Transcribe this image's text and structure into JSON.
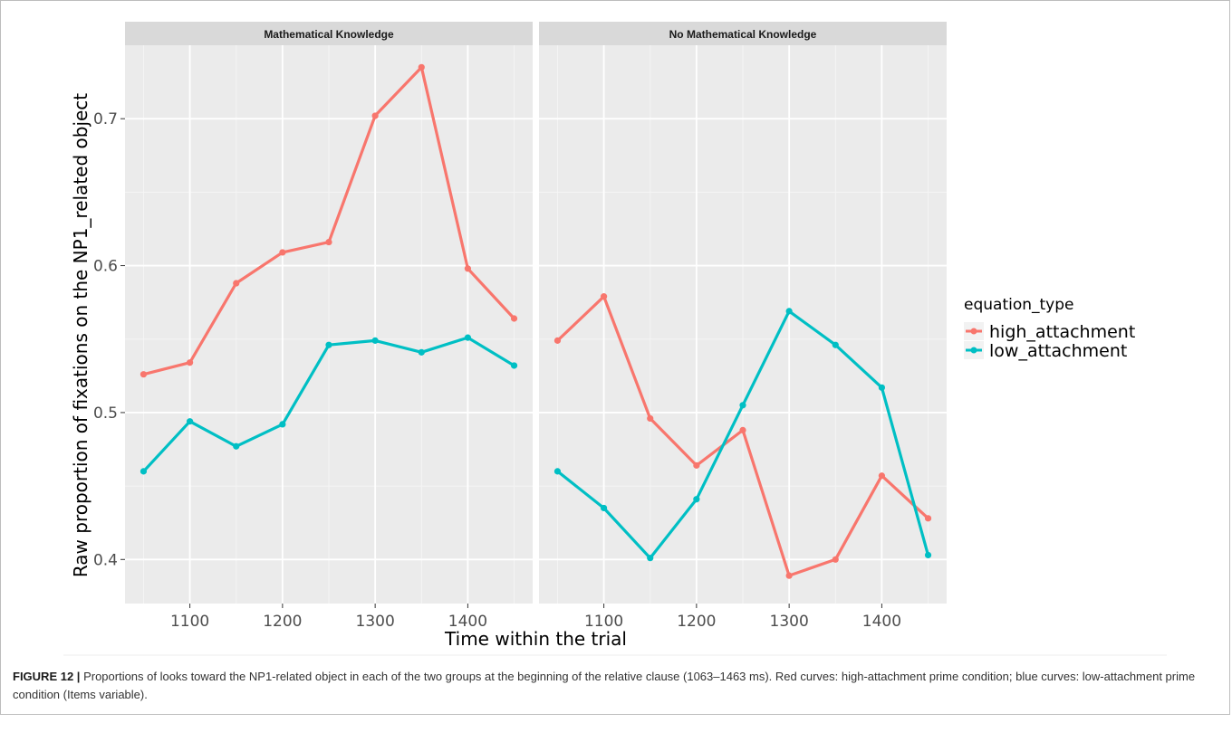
{
  "figure": {
    "label": "FIGURE 12 |",
    "caption": "Proportions of looks toward the NP1-related object in each of the two groups at the beginning of the relative clause (1063–1463 ms). Red curves: high-attachment prime condition; blue curves: low-attachment prime condition (Items variable)."
  },
  "chart_data": {
    "type": "line",
    "xlabel": "Time within the trial",
    "ylabel": "Raw proportion of fixations on the NP1_related object",
    "xlim": [
      1030,
      1470
    ],
    "ylim": [
      0.37,
      0.75
    ],
    "x_ticks": [
      1100,
      1200,
      1300,
      1400
    ],
    "y_ticks": [
      0.4,
      0.5,
      0.6,
      0.7
    ],
    "y_tick_labels": [
      "0.4",
      "0.5",
      "0.6",
      "0.7"
    ],
    "grid": true,
    "legend": {
      "title": "equation_type",
      "placement": "right",
      "entries": [
        "high_attachment",
        "low_attachment"
      ]
    },
    "colors": {
      "high_attachment": "#F8766D",
      "low_attachment": "#00BFC4",
      "panel_bg": "#EBEBEB",
      "strip_bg": "#D9D9D9",
      "grid_major": "#FFFFFF"
    },
    "x": [
      1050,
      1100,
      1150,
      1200,
      1250,
      1300,
      1350,
      1400,
      1450
    ],
    "facets": [
      {
        "title": "Mathematical Knowledge",
        "series": [
          {
            "name": "high_attachment",
            "values": [
              0.526,
              0.534,
              0.588,
              0.609,
              0.616,
              0.702,
              0.735,
              0.598,
              0.564
            ]
          },
          {
            "name": "low_attachment",
            "values": [
              0.46,
              0.494,
              0.477,
              0.492,
              0.546,
              0.549,
              0.541,
              0.551,
              0.532
            ]
          }
        ]
      },
      {
        "title": "No Mathematical Knowledge",
        "series": [
          {
            "name": "high_attachment",
            "values": [
              0.549,
              0.579,
              0.496,
              0.464,
              0.488,
              0.389,
              0.4,
              0.457,
              0.428
            ]
          },
          {
            "name": "low_attachment",
            "values": [
              0.46,
              0.435,
              0.401,
              0.441,
              0.505,
              0.569,
              0.546,
              0.517,
              0.403
            ]
          }
        ]
      }
    ]
  }
}
